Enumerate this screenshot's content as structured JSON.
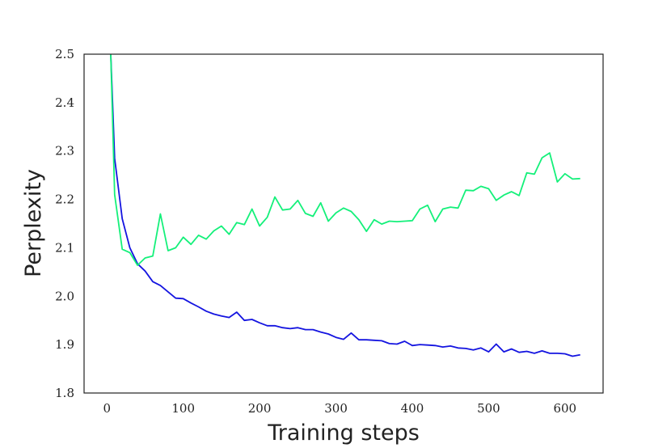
{
  "chart_data": {
    "type": "line",
    "title": "",
    "xlabel": "Training steps",
    "ylabel": "Perplexity",
    "xlim": [
      -30,
      650
    ],
    "ylim": [
      1.8,
      2.5
    ],
    "xticks": [
      0,
      100,
      200,
      300,
      400,
      500,
      600
    ],
    "yticks": [
      1.8,
      1.9,
      2.0,
      2.1,
      2.2,
      2.3,
      2.4,
      2.5
    ],
    "xtick_labels": [
      "0",
      "100",
      "200",
      "300",
      "400",
      "500",
      "600"
    ],
    "ytick_labels": [
      "1.8",
      "1.9",
      "2.0",
      "2.1",
      "2.2",
      "2.3",
      "2.4",
      "2.5"
    ],
    "grid": false,
    "legend": false,
    "series": [
      {
        "color": "#1414e0",
        "x": [
          5,
          10,
          20,
          30,
          40,
          50,
          60,
          70,
          80,
          90,
          100,
          110,
          120,
          130,
          140,
          150,
          160,
          170,
          180,
          190,
          200,
          210,
          220,
          230,
          240,
          250,
          260,
          270,
          280,
          290,
          300,
          310,
          320,
          330,
          340,
          350,
          360,
          370,
          380,
          390,
          400,
          410,
          420,
          430,
          440,
          450,
          460,
          470,
          480,
          490,
          500,
          510,
          520,
          530,
          540,
          550,
          560,
          570,
          580,
          590,
          600,
          610,
          620
        ],
        "y": [
          2.5,
          2.285,
          2.16,
          2.1,
          2.067,
          2.052,
          2.03,
          2.022,
          2.009,
          1.996,
          1.995,
          1.986,
          1.978,
          1.969,
          1.963,
          1.959,
          1.956,
          1.967,
          1.95,
          1.952,
          1.945,
          1.939,
          1.939,
          1.935,
          1.933,
          1.935,
          1.931,
          1.931,
          1.926,
          1.922,
          1.915,
          1.911,
          1.924,
          1.91,
          1.91,
          1.909,
          1.908,
          1.902,
          1.901,
          1.907,
          1.898,
          1.9,
          1.899,
          1.898,
          1.895,
          1.897,
          1.893,
          1.892,
          1.889,
          1.893,
          1.885,
          1.901,
          1.885,
          1.891,
          1.884,
          1.886,
          1.882,
          1.887,
          1.882,
          1.882,
          1.881,
          1.876,
          1.879
        ]
      },
      {
        "color": "#14f07a",
        "x": [
          5,
          10,
          20,
          30,
          40,
          50,
          60,
          70,
          80,
          90,
          100,
          110,
          120,
          130,
          140,
          150,
          160,
          170,
          180,
          190,
          200,
          210,
          220,
          230,
          240,
          250,
          260,
          270,
          280,
          290,
          300,
          310,
          320,
          330,
          340,
          350,
          360,
          370,
          380,
          390,
          400,
          410,
          420,
          430,
          440,
          450,
          460,
          470,
          480,
          490,
          500,
          510,
          520,
          530,
          540,
          550,
          560,
          570,
          580,
          590,
          600,
          610,
          620
        ],
        "y": [
          2.5,
          2.21,
          2.097,
          2.09,
          2.064,
          2.079,
          2.083,
          2.17,
          2.094,
          2.1,
          2.122,
          2.107,
          2.126,
          2.118,
          2.135,
          2.145,
          2.128,
          2.152,
          2.148,
          2.18,
          2.145,
          2.163,
          2.205,
          2.178,
          2.18,
          2.198,
          2.171,
          2.165,
          2.193,
          2.155,
          2.172,
          2.182,
          2.175,
          2.158,
          2.134,
          2.158,
          2.149,
          2.155,
          2.154,
          2.155,
          2.156,
          2.18,
          2.188,
          2.154,
          2.18,
          2.184,
          2.182,
          2.219,
          2.218,
          2.227,
          2.222,
          2.198,
          2.209,
          2.216,
          2.208,
          2.255,
          2.252,
          2.286,
          2.296,
          2.236,
          2.253,
          2.242,
          2.243
        ]
      }
    ]
  }
}
